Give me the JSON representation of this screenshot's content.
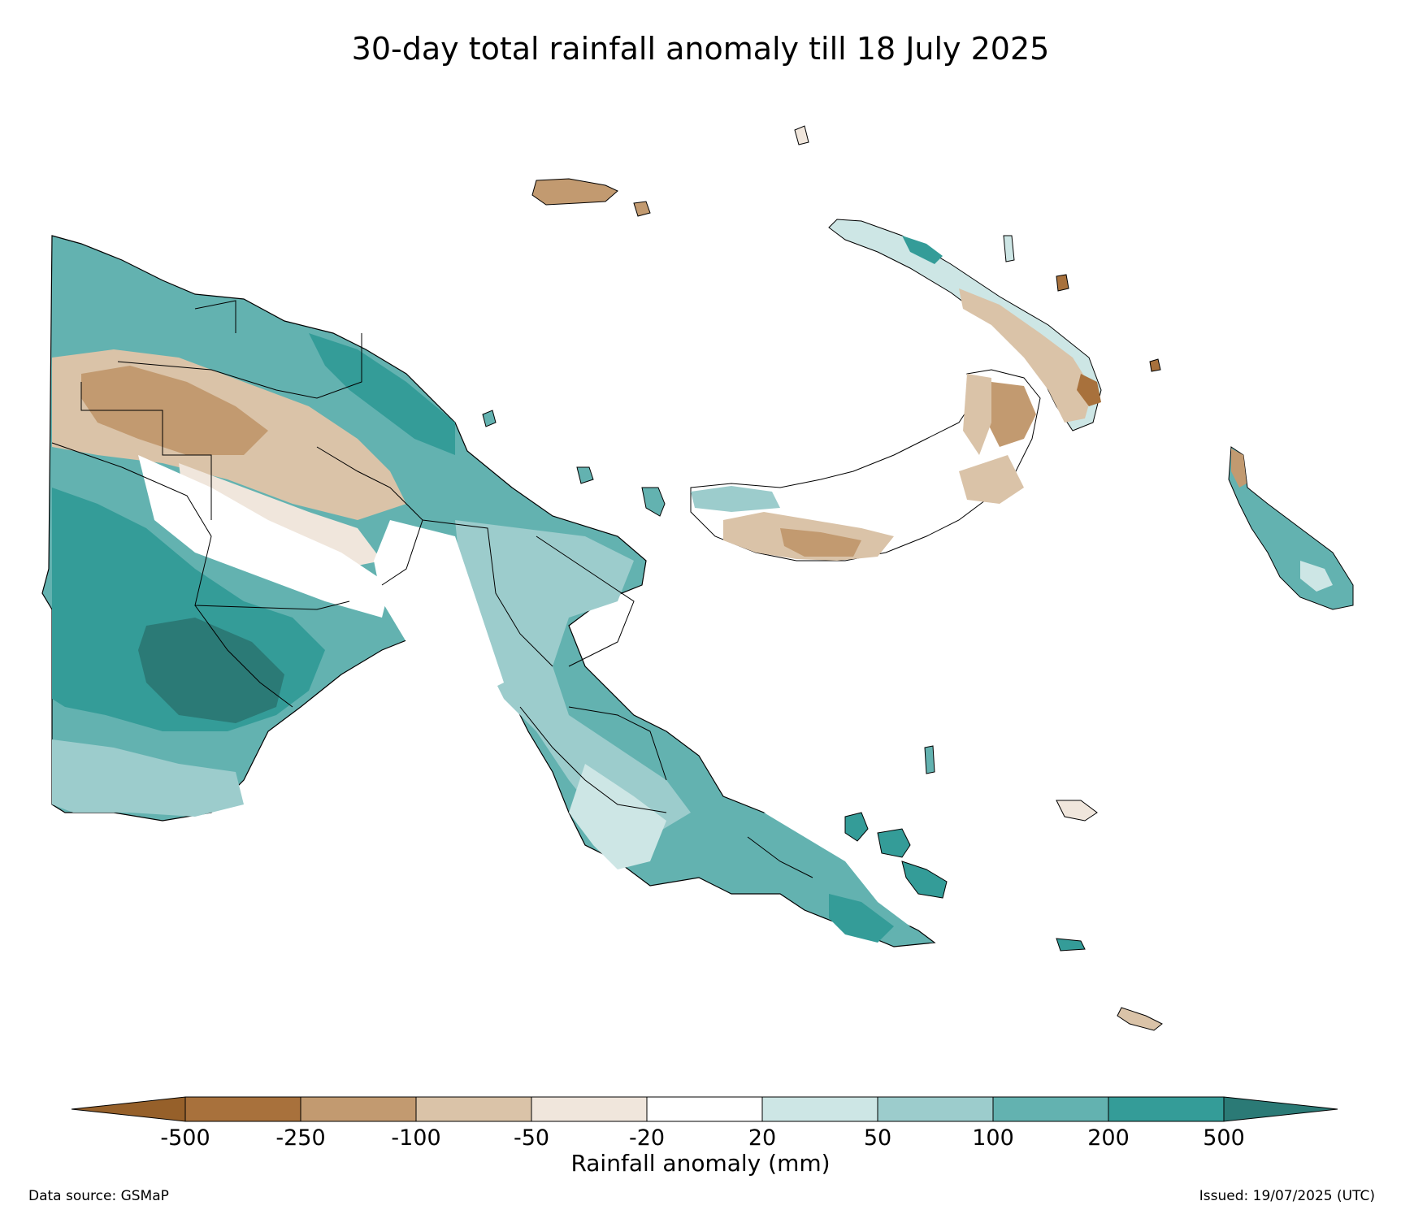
{
  "title": "30-day total rainfall anomaly till 18 July 2025",
  "colorbar": {
    "label": "Rainfall anomaly (mm)",
    "ticks": [
      "-500",
      "-250",
      "-100",
      "-50",
      "-20",
      "20",
      "50",
      "100",
      "200",
      "500"
    ],
    "extend_low_color": "#96602a",
    "extend_high_color": "#2b7a76",
    "bin_colors": [
      "#a8713c",
      "#c29a70",
      "#dac3a8",
      "#f0e6dc",
      "#ffffff",
      "#cde6e5",
      "#9ccccc",
      "#63b2b0",
      "#349c98"
    ]
  },
  "footer": {
    "source": "Data source: GSMaP",
    "issued": "Issued: 19/07/2025 (UTC)"
  }
}
